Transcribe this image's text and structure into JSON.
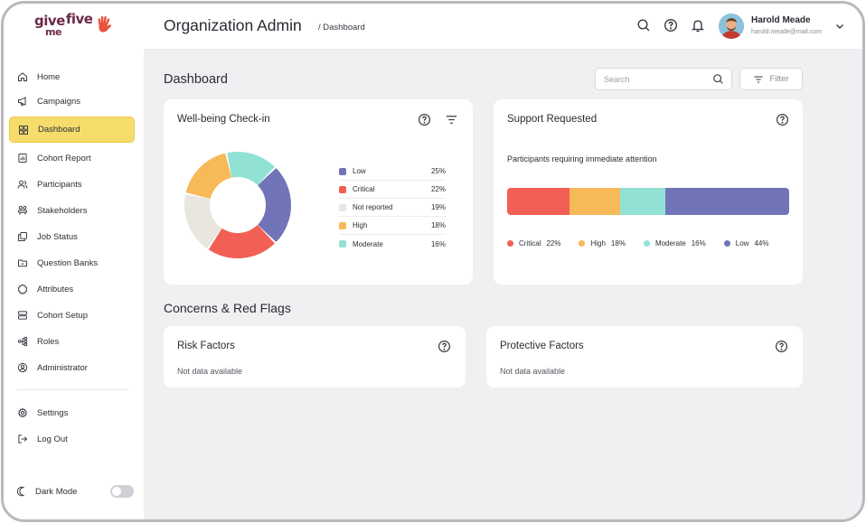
{
  "brand": {
    "logo_top": "give",
    "logo_bottom": "me",
    "logo_tail": "five",
    "accent": "#e8533f",
    "active_nav": "#f6dc6a"
  },
  "sidebar": {
    "items": [
      {
        "label": "Home",
        "icon": "home-icon"
      },
      {
        "label": "Campaigns",
        "icon": "megaphone-icon"
      },
      {
        "label": "Dashboard",
        "icon": "grid-icon",
        "active": true
      },
      {
        "label": "Cohort Report",
        "icon": "report-icon"
      },
      {
        "label": "Participants",
        "icon": "users-icon"
      },
      {
        "label": "Stakeholders",
        "icon": "stakeholders-icon"
      },
      {
        "label": "Job Status",
        "icon": "job-status-icon"
      },
      {
        "label": "Question Banks",
        "icon": "folder-icon"
      },
      {
        "label": "Attributes",
        "icon": "badge-icon"
      },
      {
        "label": "Cohort Setup",
        "icon": "setup-icon"
      },
      {
        "label": "Roles",
        "icon": "hierarchy-icon"
      },
      {
        "label": "Administrator",
        "icon": "admin-icon"
      }
    ],
    "footer_items": [
      {
        "label": "Settings",
        "icon": "gear-icon"
      },
      {
        "label": "Log Out",
        "icon": "logout-icon"
      }
    ],
    "dark_mode_label": "Dark Mode",
    "dark_mode_on": false
  },
  "header": {
    "title": "Organization Admin",
    "breadcrumb": "/ Dashboard",
    "user_name": "Harold Meade",
    "user_email": "harold.meade@mail.com"
  },
  "main": {
    "page_title": "Dashboard",
    "search_placeholder": "Search",
    "filter_label": "Filter",
    "section_title": "Concerns & Red Flags"
  },
  "cards": {
    "wellbeing_title": "Well-being Check-in",
    "support_title": "Support Requested",
    "support_subtitle": "Participants requiring immediate attention",
    "risk_title": "Risk Factors",
    "risk_empty": "Not data available",
    "protective_title": "Protective Factors",
    "protective_empty": "Not data available"
  },
  "chart_data": [
    {
      "type": "pie",
      "variant": "donut",
      "title": "Well-being Check-in",
      "categories": [
        "Low",
        "Critical",
        "Not reported",
        "High",
        "Moderate"
      ],
      "values": [
        25,
        22,
        19,
        18,
        16
      ],
      "labels": [
        "25%",
        "22%",
        "19%",
        "18%",
        "16%"
      ],
      "colors": [
        "#7274b8",
        "#f25f55",
        "#e9e5df",
        "#f8b958",
        "#91e2d5"
      ],
      "legend": "right"
    },
    {
      "type": "bar",
      "variant": "stacked-horizontal",
      "title": "Support Requested",
      "categories": [
        "Critical",
        "High",
        "Moderate",
        "Low"
      ],
      "values": [
        22,
        18,
        16,
        44
      ],
      "labels": [
        "22%",
        "18%",
        "16%",
        "44%"
      ],
      "colors": [
        "#f25f55",
        "#f8b958",
        "#91e2d5",
        "#7274b8"
      ],
      "legend": "bottom"
    }
  ]
}
